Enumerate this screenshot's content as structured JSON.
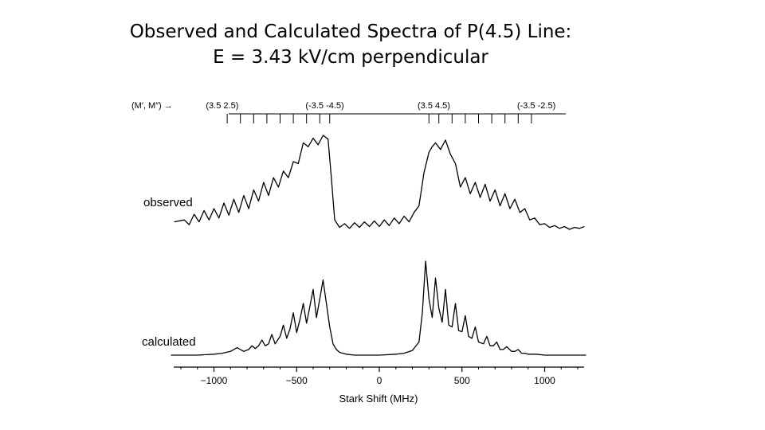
{
  "title_line1": "Observed and Calculated Spectra of P(4.5) Line:",
  "title_line2": "E = 3.43 kV/cm perpendicular",
  "chart_data": {
    "type": "line",
    "xlabel": "Stark Shift (MHz)",
    "xlim": [
      -1300,
      1250
    ],
    "xticks": [
      -1000,
      -500,
      0,
      500,
      1000
    ],
    "xtick_labels": [
      "−1000",
      "−500",
      "0",
      "500",
      "1000"
    ],
    "mj_header": {
      "label": "(M′, M″) →",
      "groups": [
        {
          "label": "(3.5 2.5)",
          "x": -950
        },
        {
          "label": "(-3.5 -4.5)",
          "x": -330
        },
        {
          "label": "(3.5 4.5)",
          "x": 330
        },
        {
          "label": "(-3.5 -2.5)",
          "x": 950
        }
      ],
      "tick_positions": [
        -920,
        -840,
        -760,
        -680,
        -600,
        -520,
        -440,
        -360,
        -300,
        300,
        360,
        440,
        520,
        600,
        680,
        760,
        840,
        920
      ]
    },
    "series": [
      {
        "name": "observed",
        "x": [
          -1240,
          -1180,
          -1150,
          -1120,
          -1090,
          -1060,
          -1030,
          -1000,
          -970,
          -940,
          -910,
          -880,
          -850,
          -820,
          -790,
          -760,
          -730,
          -700,
          -670,
          -640,
          -610,
          -580,
          -550,
          -520,
          -490,
          -460,
          -430,
          -400,
          -370,
          -340,
          -310,
          -290,
          -270,
          -240,
          -210,
          -180,
          -150,
          -120,
          -90,
          -60,
          -30,
          0,
          30,
          60,
          90,
          120,
          150,
          180,
          210,
          240,
          270,
          300,
          320,
          340,
          370,
          400,
          430,
          460,
          490,
          520,
          550,
          580,
          610,
          640,
          670,
          700,
          730,
          760,
          790,
          820,
          850,
          880,
          910,
          940,
          970,
          1000,
          1030,
          1060,
          1090,
          1120,
          1150,
          1180,
          1210,
          1240
        ],
        "values": [
          0.08,
          0.1,
          0.05,
          0.16,
          0.08,
          0.2,
          0.1,
          0.22,
          0.12,
          0.28,
          0.15,
          0.32,
          0.18,
          0.36,
          0.22,
          0.42,
          0.3,
          0.5,
          0.36,
          0.55,
          0.45,
          0.62,
          0.55,
          0.72,
          0.7,
          0.92,
          0.88,
          0.97,
          0.9,
          1.0,
          0.96,
          0.55,
          0.1,
          0.02,
          0.06,
          0.01,
          0.07,
          0.02,
          0.08,
          0.03,
          0.09,
          0.03,
          0.1,
          0.04,
          0.12,
          0.06,
          0.14,
          0.08,
          0.18,
          0.25,
          0.6,
          0.82,
          0.88,
          0.92,
          0.85,
          0.95,
          0.8,
          0.7,
          0.45,
          0.55,
          0.38,
          0.5,
          0.34,
          0.48,
          0.3,
          0.42,
          0.25,
          0.38,
          0.22,
          0.32,
          0.18,
          0.22,
          0.1,
          0.12,
          0.05,
          0.06,
          0.02,
          0.04,
          0.01,
          0.03,
          0.0,
          0.02,
          0.01,
          0.03
        ]
      },
      {
        "name": "calculated",
        "x": [
          -1260,
          -1100,
          -1000,
          -950,
          -900,
          -880,
          -860,
          -840,
          -820,
          -790,
          -770,
          -750,
          -730,
          -710,
          -690,
          -670,
          -650,
          -630,
          -600,
          -580,
          -560,
          -540,
          -520,
          -500,
          -480,
          -460,
          -440,
          -420,
          -400,
          -380,
          -360,
          -340,
          -320,
          -300,
          -280,
          -260,
          -240,
          -200,
          -150,
          -100,
          0,
          100,
          150,
          200,
          240,
          260,
          280,
          300,
          320,
          340,
          360,
          380,
          400,
          420,
          440,
          460,
          480,
          500,
          520,
          540,
          560,
          580,
          600,
          630,
          650,
          670,
          690,
          710,
          730,
          750,
          770,
          800,
          820,
          840,
          860,
          880,
          900,
          950,
          1000,
          1100,
          1250
        ],
        "values": [
          0.0,
          0.0,
          0.01,
          0.02,
          0.04,
          0.06,
          0.08,
          0.06,
          0.04,
          0.06,
          0.1,
          0.07,
          0.1,
          0.16,
          0.1,
          0.12,
          0.22,
          0.12,
          0.2,
          0.32,
          0.18,
          0.28,
          0.45,
          0.24,
          0.38,
          0.55,
          0.34,
          0.52,
          0.7,
          0.4,
          0.6,
          0.8,
          0.55,
          0.3,
          0.12,
          0.06,
          0.03,
          0.01,
          0.0,
          0.0,
          0.0,
          0.01,
          0.02,
          0.05,
          0.14,
          0.45,
          1.0,
          0.6,
          0.4,
          0.82,
          0.5,
          0.35,
          0.7,
          0.32,
          0.3,
          0.55,
          0.26,
          0.25,
          0.42,
          0.2,
          0.18,
          0.3,
          0.14,
          0.12,
          0.2,
          0.1,
          0.1,
          0.14,
          0.06,
          0.06,
          0.09,
          0.04,
          0.04,
          0.06,
          0.02,
          0.02,
          0.01,
          0.01,
          0.0,
          0.0,
          0.0
        ]
      }
    ]
  }
}
